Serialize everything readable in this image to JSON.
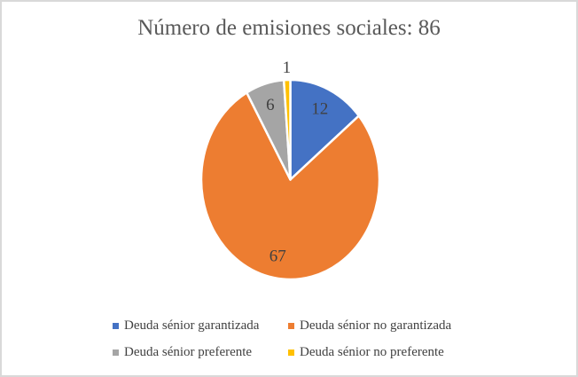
{
  "frame": {
    "border_color": "#D9D9D9",
    "background_color": "#FFFFFF"
  },
  "chart_data": {
    "type": "pie",
    "title": "Número de emisiones sociales: 86",
    "total": 86,
    "categories": [
      "Deuda sénior garantizada",
      "Deuda sénior no garantizada",
      "Deuda sénior preferente",
      "Deuda sénior no preferente"
    ],
    "values": [
      12,
      67,
      6,
      1
    ],
    "data_labels": [
      "12",
      "67",
      "6",
      "1"
    ],
    "label_placements": [
      "inside",
      "inside",
      "inside",
      "outside"
    ],
    "colors": [
      "#4472C4",
      "#ED7D31",
      "#A5A5A5",
      "#FFC000"
    ],
    "start_angle_deg": 0,
    "direction": "clockwise",
    "legend_position": "bottom",
    "legend_columns": 2,
    "slice_border_color": "#FFFFFF",
    "title_color": "#595959",
    "data_label_color": "#404040",
    "legend_text_color": "#404040"
  }
}
